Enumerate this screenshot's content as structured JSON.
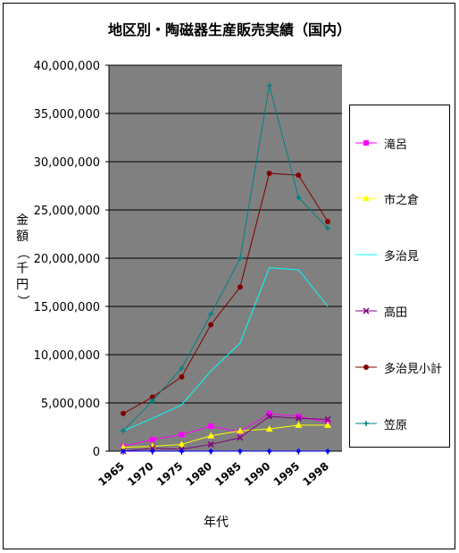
{
  "chart_data": {
    "type": "line",
    "title": "地区別・陶磁器生産販売実績（国内）",
    "xlabel": "年代",
    "ylabel": "金額（千円）",
    "ylim": [
      0,
      40000000
    ],
    "ytick_labels": [
      "0",
      "5,000,000",
      "10,000,000",
      "15,000,000",
      "20,000,000",
      "25,000,000",
      "30,000,000",
      "35,000,000",
      "40,000,000"
    ],
    "categories": [
      "1965",
      "1970",
      "1975",
      "1980",
      "1985",
      "1990",
      "1995",
      "1998"
    ],
    "grid": true,
    "legend_placement": "right",
    "series": [
      {
        "name": "滝呂",
        "color": "#ff00ff",
        "marker": "square",
        "values": [
          500000,
          1200000,
          1700000,
          2600000,
          2000000,
          3900000,
          3600000,
          3000000
        ]
      },
      {
        "name": "市之倉",
        "color": "#ffff00",
        "marker": "triangle",
        "values": [
          400000,
          500000,
          700000,
          1600000,
          2100000,
          2300000,
          2700000,
          2700000
        ]
      },
      {
        "name": "多治見",
        "color": "#00ffff",
        "marker": "none",
        "values": [
          2100000,
          3400000,
          4800000,
          8300000,
          11200000,
          19000000,
          18800000,
          15000000
        ]
      },
      {
        "name": "高田",
        "color": "#800080",
        "marker": "x",
        "values": [
          0,
          300000,
          200000,
          700000,
          1400000,
          3600000,
          3400000,
          3300000
        ]
      },
      {
        "name": "多治見小計",
        "color": "#800000",
        "marker": "circle",
        "values": [
          3900000,
          5600000,
          7700000,
          13100000,
          17000000,
          28800000,
          28600000,
          23800000
        ]
      },
      {
        "name": "笠原",
        "color": "#008080",
        "marker": "plus",
        "values": [
          2100000,
          5200000,
          8600000,
          14200000,
          20000000,
          37900000,
          26300000,
          23100000
        ]
      },
      {
        "name": "",
        "color": "#0000ff",
        "marker": "diamond",
        "values": [
          0,
          0,
          0,
          0,
          0,
          0,
          0,
          0
        ]
      }
    ]
  },
  "legend_series_count": 6
}
